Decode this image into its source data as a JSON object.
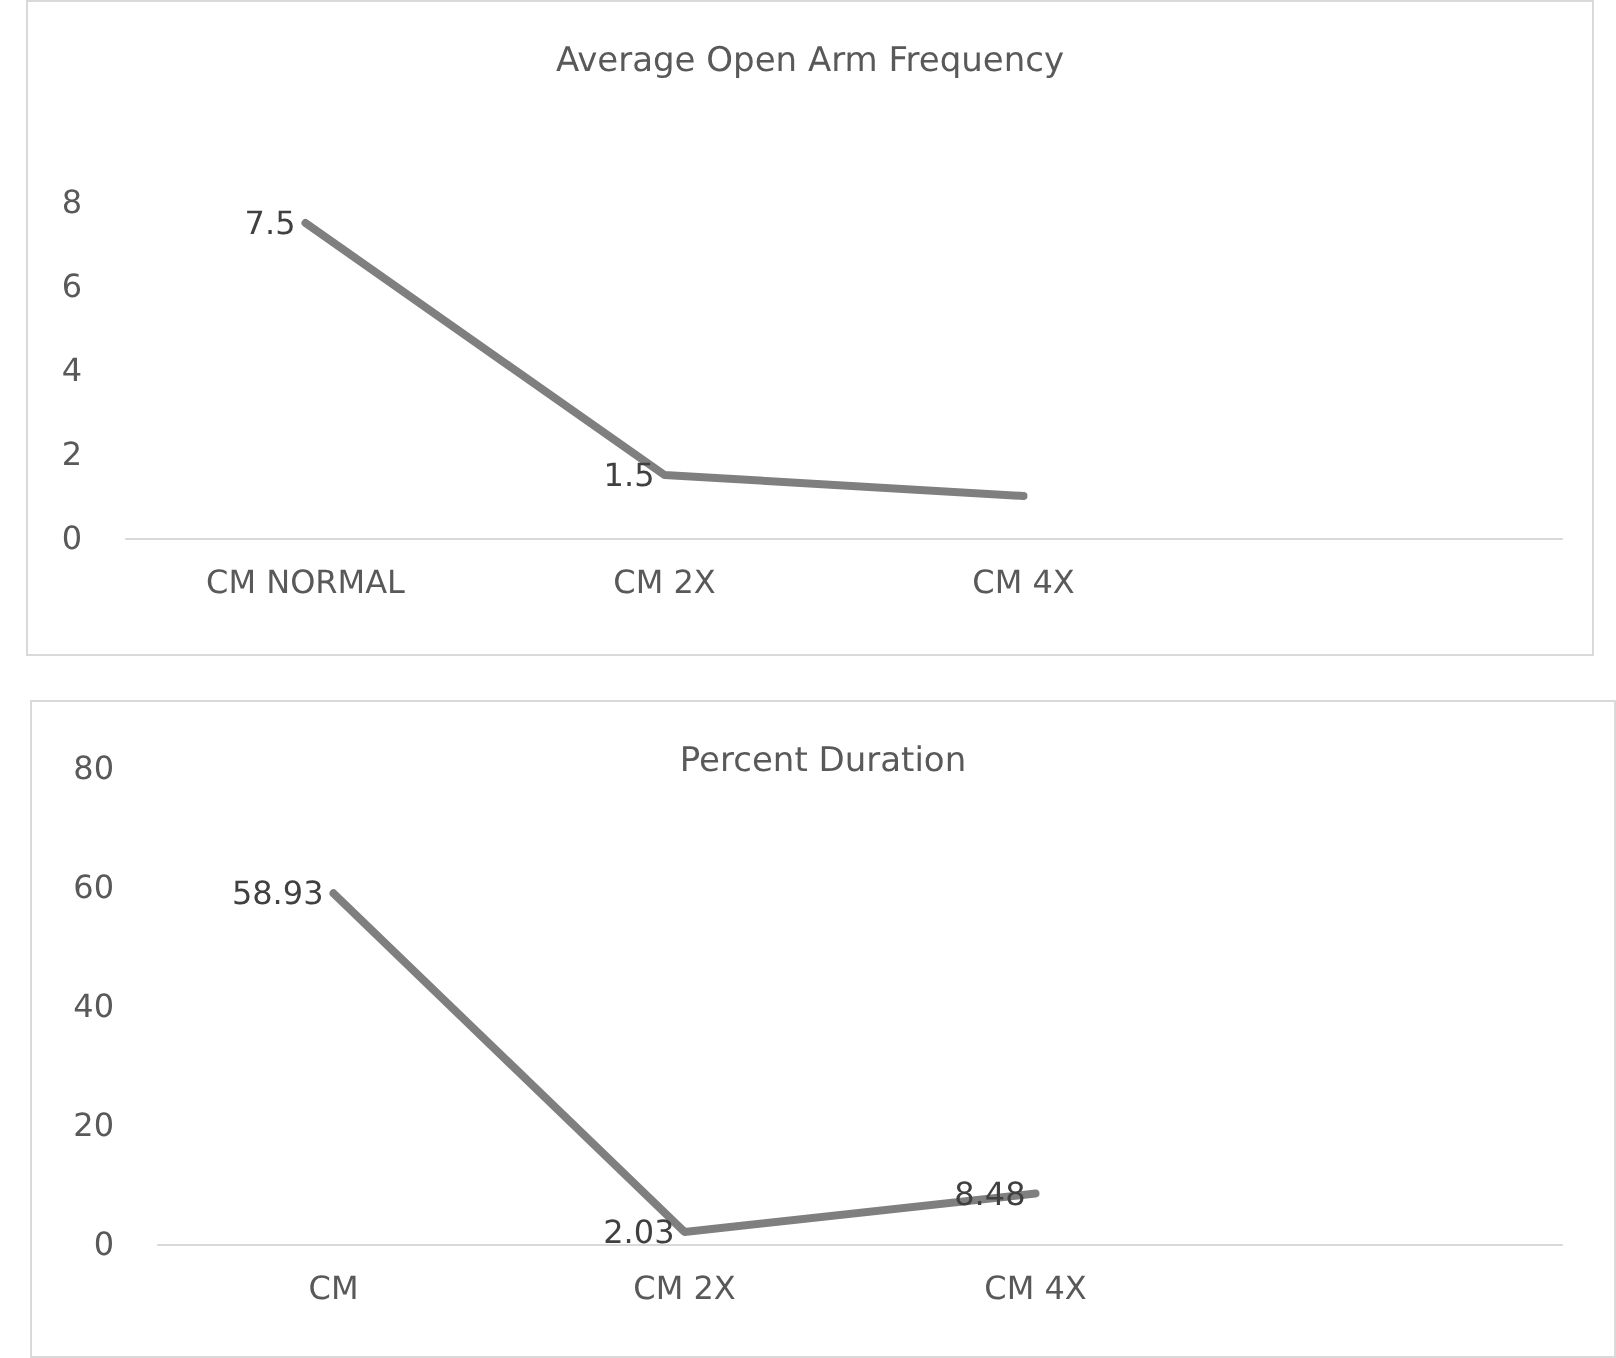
{
  "chart_data": [
    {
      "type": "line",
      "title": "Average Open Arm Frequency",
      "categories": [
        "CM NORMAL",
        "CM 2X",
        "CM 4X",
        null
      ],
      "series": [
        {
          "color": "#7f7f7f",
          "values": [
            7.5,
            1.5,
            1.0,
            null
          ],
          "value_labels": [
            "7.5",
            "1.5",
            null,
            null
          ]
        }
      ],
      "ylim": [
        0,
        8
      ],
      "yticks": [
        0,
        2,
        4,
        6,
        8
      ],
      "grid": false,
      "marker": "none"
    },
    {
      "type": "line",
      "title": "Percent Duration",
      "categories": [
        "CM",
        "CM 2X",
        "CM 4X",
        null
      ],
      "series": [
        {
          "color": "#7f7f7f",
          "values": [
            58.93,
            2.03,
            8.48,
            null
          ]
        }
      ],
      "ylim": [
        0,
        80
      ],
      "yticks": [
        0,
        20,
        40,
        60,
        80
      ],
      "grid": false,
      "marker": "none",
      "data_labels": true
    }
  ]
}
